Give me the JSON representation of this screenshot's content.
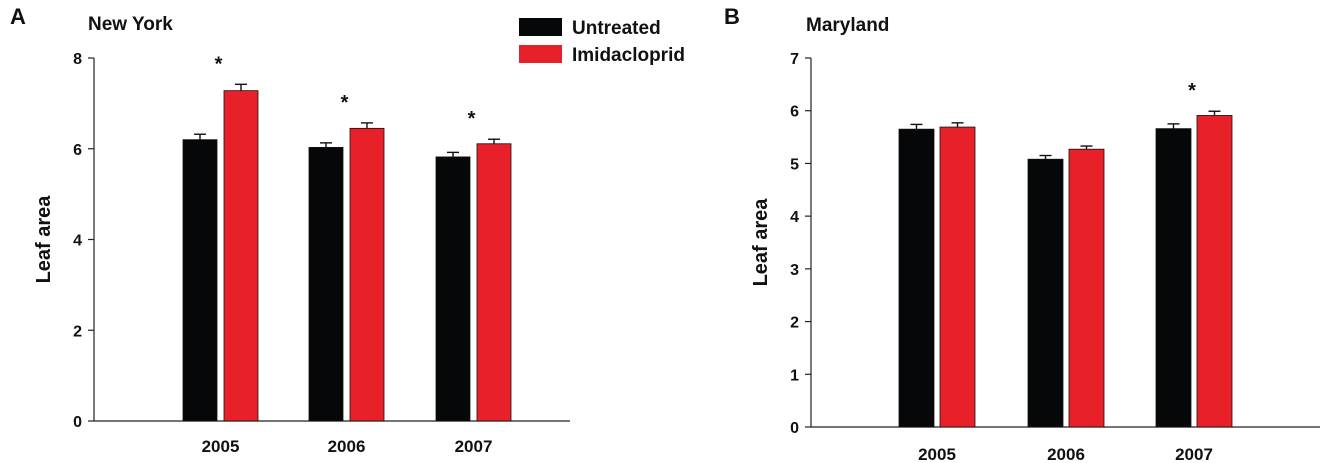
{
  "legend": {
    "entries": [
      {
        "label": "Untreated",
        "color": "#050708"
      },
      {
        "label": "Imidacloprid",
        "color": "#e8202a"
      }
    ]
  },
  "chart_data": [
    {
      "type": "bar",
      "panel": "A",
      "title": "New York",
      "ylabel": "Leaf area",
      "xlabel": "",
      "ylim": [
        0,
        8
      ],
      "yticks": [
        0,
        2,
        4,
        6,
        8
      ],
      "categories": [
        "2005",
        "2006",
        "2007"
      ],
      "series": [
        {
          "name": "Untreated",
          "color": "#050708",
          "values": [
            6.2,
            6.03,
            5.82
          ],
          "errors": [
            0.12,
            0.1,
            0.1
          ]
        },
        {
          "name": "Imidacloprid",
          "color": "#e8202a",
          "values": [
            7.28,
            6.45,
            6.11
          ],
          "errors": [
            0.14,
            0.12,
            0.1
          ]
        }
      ],
      "significance": [
        "*",
        "*",
        "*"
      ],
      "legend_position": "top-right"
    },
    {
      "type": "bar",
      "panel": "B",
      "title": "Maryland",
      "ylabel": "Leaf area",
      "xlabel": "",
      "ylim": [
        0,
        7
      ],
      "yticks": [
        0,
        1,
        2,
        3,
        4,
        5,
        6,
        7
      ],
      "categories": [
        "2005",
        "2006",
        "2007"
      ],
      "series": [
        {
          "name": "Untreated",
          "color": "#050708",
          "values": [
            5.65,
            5.08,
            5.66
          ],
          "errors": [
            0.09,
            0.07,
            0.09
          ]
        },
        {
          "name": "Imidacloprid",
          "color": "#e8202a",
          "values": [
            5.69,
            5.27,
            5.91
          ],
          "errors": [
            0.08,
            0.06,
            0.08
          ]
        }
      ],
      "significance": [
        "",
        "",
        "*"
      ]
    }
  ]
}
